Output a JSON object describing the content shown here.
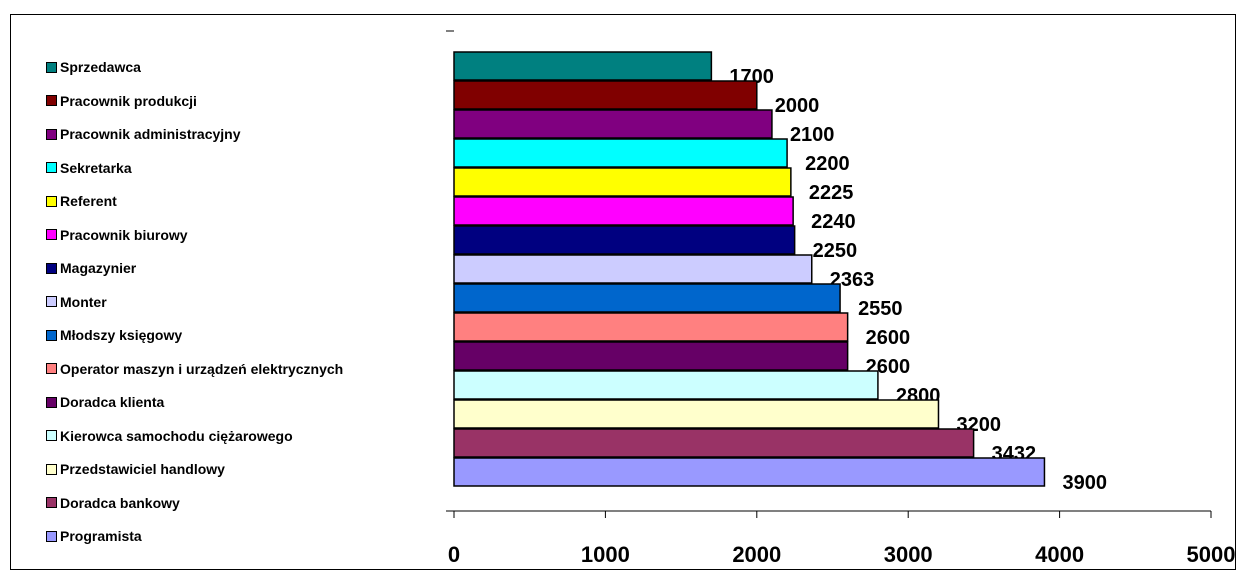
{
  "chart_data": {
    "type": "bar",
    "orientation": "horizontal",
    "title": "",
    "xlabel": "",
    "ylabel": "",
    "xlim": [
      0,
      5000
    ],
    "x_ticks": [
      "0",
      "1000",
      "2000",
      "3000",
      "4000",
      "5000"
    ],
    "grid": false,
    "legend_position": "left",
    "series": [
      {
        "name": "Sprzedawca",
        "value": 1700,
        "label": "1700",
        "color": "#008080"
      },
      {
        "name": "Pracownik produkcji",
        "value": 2000,
        "label": "2000",
        "color": "#800000"
      },
      {
        "name": "Pracownik administracyjny",
        "value": 2100,
        "label": "2100",
        "color": "#800080"
      },
      {
        "name": "Sekretarka",
        "value": 2200,
        "label": "2200",
        "color": "#00ffff"
      },
      {
        "name": "Referent",
        "value": 2225,
        "label": "2225",
        "color": "#ffff00"
      },
      {
        "name": "Pracownik biurowy",
        "value": 2240,
        "label": "2240",
        "color": "#ff00ff"
      },
      {
        "name": "Magazynier",
        "value": 2250,
        "label": "2250",
        "color": "#000080"
      },
      {
        "name": "Monter",
        "value": 2363,
        "label": "2363",
        "color": "#ccccff"
      },
      {
        "name": "Młodszy księgowy",
        "value": 2550,
        "label": "2550",
        "color": "#0066cc"
      },
      {
        "name": "Operator maszyn i urządzeń elektrycznych",
        "value": 2600,
        "label": "2600",
        "color": "#ff8080"
      },
      {
        "name": "Doradca klienta",
        "value": 2600,
        "label": "2600",
        "color": "#660066"
      },
      {
        "name": "Kierowca samochodu ciężarowego",
        "value": 2800,
        "label": "2800",
        "color": "#ccffff"
      },
      {
        "name": "Przedstawiciel handlowy",
        "value": 3200,
        "label": "3200",
        "color": "#ffffcc"
      },
      {
        "name": "Doradca bankowy",
        "value": 3432,
        "label": "3432",
        "color": "#993366"
      },
      {
        "name": "Programista",
        "value": 3900,
        "label": "3900",
        "color": "#9999ff"
      }
    ]
  }
}
